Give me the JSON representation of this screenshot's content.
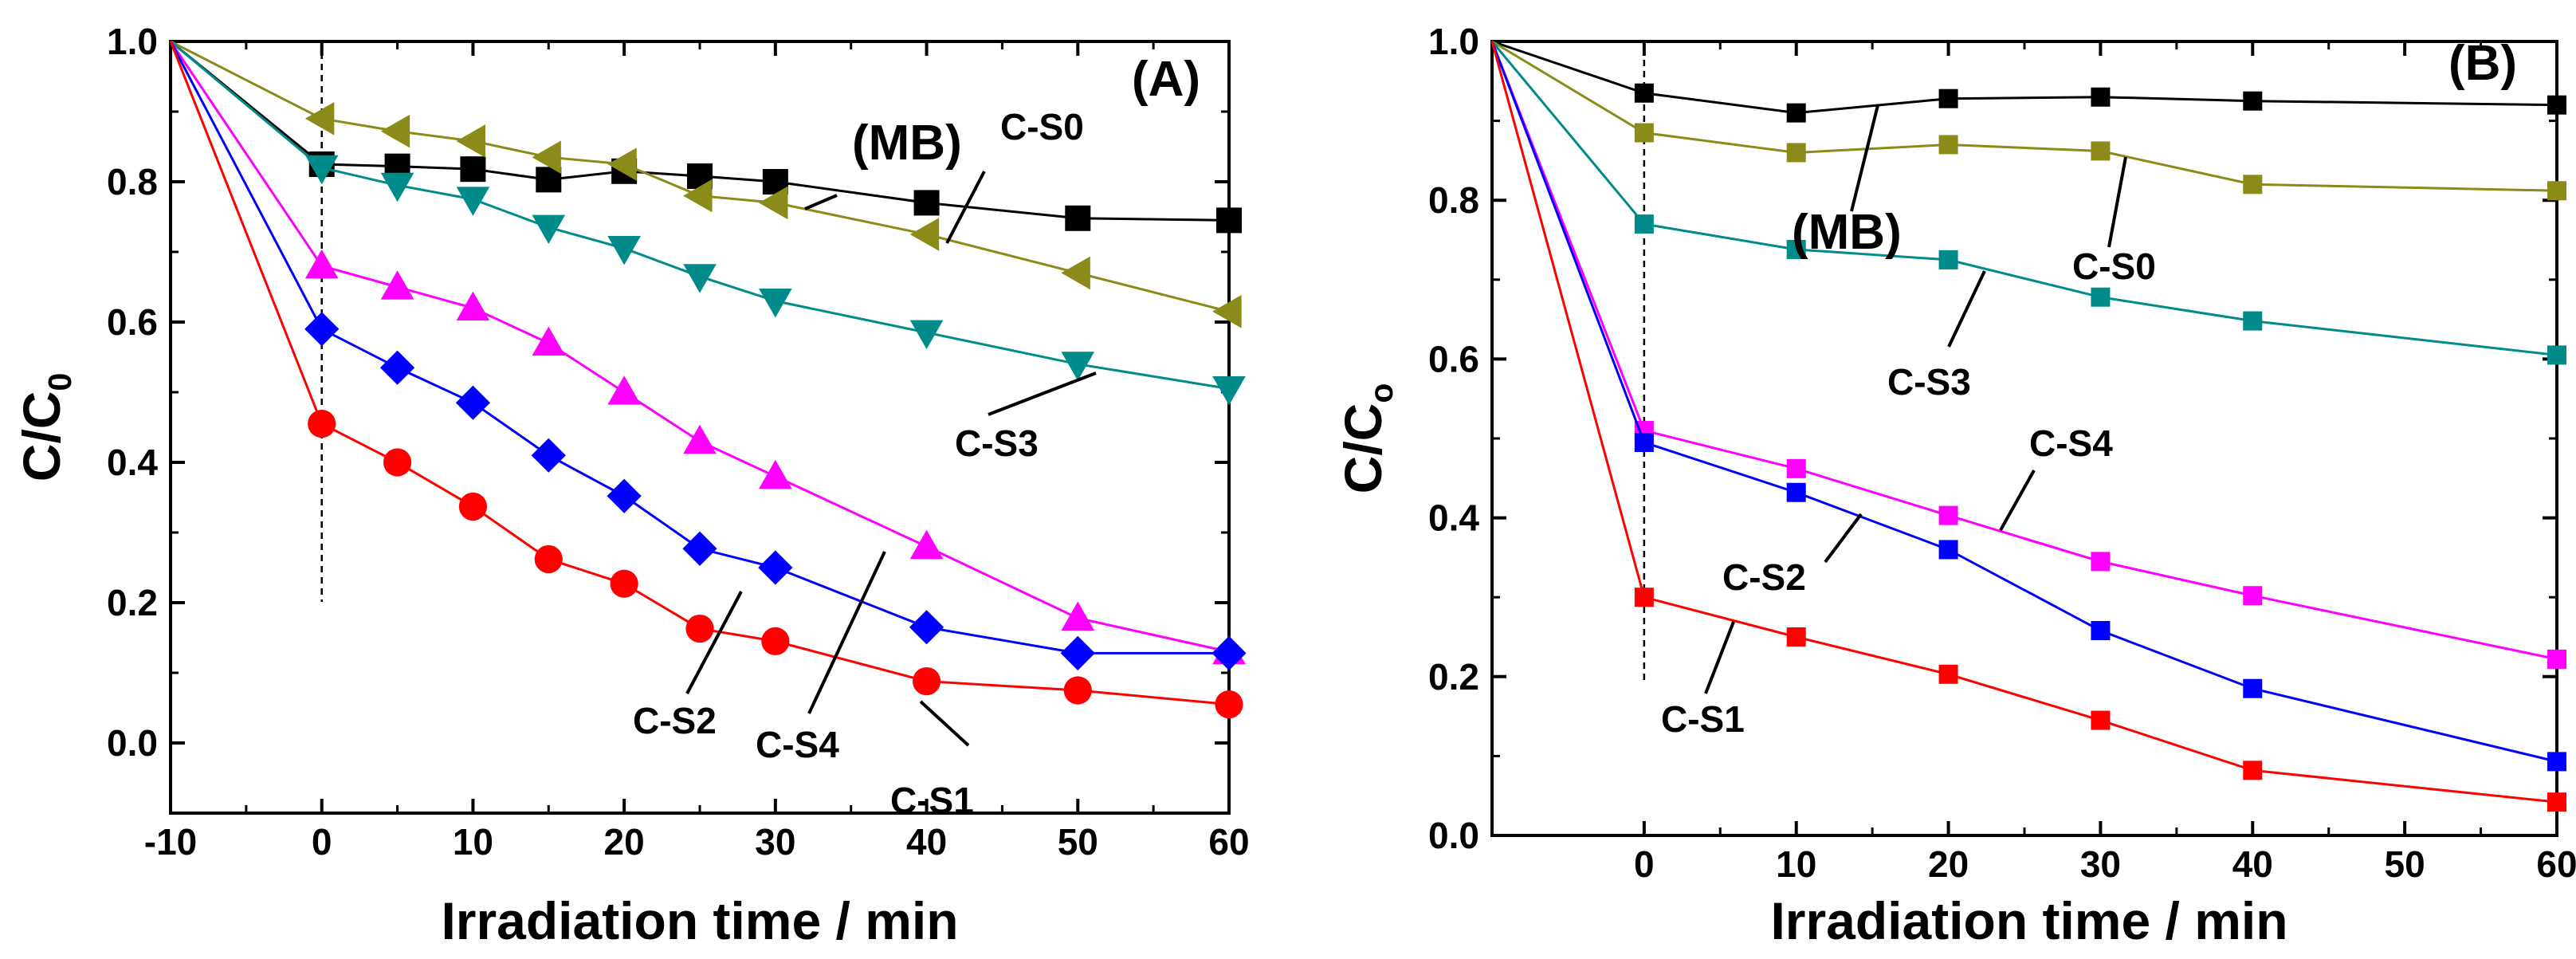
{
  "chart_data": [
    {
      "panel": "(A)",
      "type": "line",
      "xlabel": "Irradiation time / min",
      "ylabel": "C/C",
      "ylabel_sub": "0",
      "xlim": [
        -10,
        60
      ],
      "ylim": [
        -0.1,
        1.0
      ],
      "xticks": [
        -10,
        0,
        10,
        20,
        30,
        40,
        50,
        60
      ],
      "xtick_labels": [
        "-10",
        "0",
        "10",
        "20",
        "30",
        "40",
        "50",
        "60"
      ],
      "yticks": [
        0.0,
        0.2,
        0.4,
        0.6,
        0.8,
        1.0
      ],
      "ytick_labels": [
        "0.0",
        "0.2",
        "0.4",
        "0.6",
        "0.8",
        "1.0"
      ],
      "vline_x": 0,
      "series": [
        {
          "name": "(MB)",
          "color": "#000000",
          "marker": "square",
          "x": [
            -10,
            0,
            5,
            10,
            15,
            20,
            25,
            30,
            40,
            50,
            60
          ],
          "y": [
            1.0,
            0.825,
            0.822,
            0.818,
            0.803,
            0.815,
            0.808,
            0.8,
            0.77,
            0.748,
            0.745
          ]
        },
        {
          "name": "C-S0",
          "color": "#8B8B1A",
          "marker": "triangle-left",
          "x": [
            -10,
            0,
            5,
            10,
            15,
            20,
            25,
            30,
            40,
            50,
            60
          ],
          "y": [
            1.0,
            0.89,
            0.872,
            0.858,
            0.835,
            0.825,
            0.78,
            0.77,
            0.725,
            0.67,
            0.615
          ]
        },
        {
          "name": "C-S3",
          "color": "#008B8B",
          "marker": "triangle-down",
          "x": [
            -10,
            0,
            5,
            10,
            15,
            20,
            25,
            30,
            40,
            50,
            60
          ],
          "y": [
            1.0,
            0.82,
            0.795,
            0.775,
            0.735,
            0.705,
            0.665,
            0.63,
            0.585,
            0.54,
            0.505
          ]
        },
        {
          "name": "C-S4",
          "color": "#FF00FF",
          "marker": "triangle-up",
          "x": [
            -10,
            0,
            5,
            10,
            15,
            20,
            25,
            30,
            40,
            50,
            60
          ],
          "y": [
            1.0,
            0.68,
            0.65,
            0.62,
            0.57,
            0.5,
            0.43,
            0.38,
            0.28,
            0.178,
            0.13
          ]
        },
        {
          "name": "C-S2",
          "color": "#0000FF",
          "marker": "diamond",
          "x": [
            -10,
            0,
            5,
            10,
            15,
            20,
            25,
            30,
            40,
            50,
            60
          ],
          "y": [
            1.0,
            0.59,
            0.535,
            0.485,
            0.41,
            0.352,
            0.277,
            0.25,
            0.165,
            0.128,
            0.128
          ]
        },
        {
          "name": "C-S1",
          "color": "#FF0000",
          "marker": "circle",
          "x": [
            -10,
            0,
            5,
            10,
            15,
            20,
            25,
            30,
            40,
            50,
            60
          ],
          "y": [
            1.0,
            0.455,
            0.4,
            0.337,
            0.262,
            0.227,
            0.163,
            0.145,
            0.088,
            0.075,
            0.055
          ]
        }
      ],
      "annotations": [
        {
          "text": "(MB)",
          "near_series": "(MB)"
        },
        {
          "text": "C-S0",
          "near_series": "C-S0"
        },
        {
          "text": "C-S3",
          "near_series": "C-S3"
        },
        {
          "text": "C-S4",
          "near_series": "C-S4"
        },
        {
          "text": "C-S2",
          "near_series": "C-S2"
        },
        {
          "text": "C-S1",
          "near_series": "C-S1"
        }
      ]
    },
    {
      "panel": "(B)",
      "type": "line",
      "xlabel": "Irradiation time / min",
      "ylabel": "C/C",
      "ylabel_sub": "o",
      "xlim": [
        -10,
        60
      ],
      "ylim": [
        0.0,
        1.0
      ],
      "xticks": [
        0,
        10,
        20,
        30,
        40,
        50,
        60
      ],
      "xtick_labels": [
        "0",
        "10",
        "20",
        "30",
        "40",
        "50",
        "60"
      ],
      "yticks": [
        0.0,
        0.2,
        0.4,
        0.6,
        0.8,
        1.0
      ],
      "ytick_labels": [
        "0.0",
        "0.2",
        "0.4",
        "0.6",
        "0.8",
        "1.0"
      ],
      "vline_x": 0,
      "series": [
        {
          "name": "(MB)",
          "color": "#000000",
          "marker": "square",
          "x": [
            -10,
            0,
            10,
            20,
            30,
            40,
            60
          ],
          "y": [
            1.0,
            0.935,
            0.91,
            0.928,
            0.93,
            0.925,
            0.92
          ]
        },
        {
          "name": "C-S0",
          "color": "#8B8B1A",
          "marker": "square",
          "x": [
            -10,
            0,
            10,
            20,
            30,
            40,
            60
          ],
          "y": [
            1.0,
            0.885,
            0.86,
            0.87,
            0.862,
            0.82,
            0.812
          ]
        },
        {
          "name": "C-S3",
          "color": "#008B8B",
          "marker": "square",
          "x": [
            -10,
            0,
            10,
            20,
            30,
            40,
            60
          ],
          "y": [
            1.0,
            0.77,
            0.738,
            0.725,
            0.678,
            0.648,
            0.605
          ]
        },
        {
          "name": "C-S4",
          "color": "#FF00FF",
          "marker": "square",
          "x": [
            -10,
            0,
            10,
            20,
            30,
            40,
            60
          ],
          "y": [
            1.0,
            0.51,
            0.462,
            0.403,
            0.345,
            0.302,
            0.222
          ]
        },
        {
          "name": "C-S2",
          "color": "#0000FF",
          "marker": "square",
          "x": [
            -10,
            0,
            10,
            20,
            30,
            40,
            60
          ],
          "y": [
            1.0,
            0.495,
            0.432,
            0.36,
            0.258,
            0.185,
            0.093
          ]
        },
        {
          "name": "C-S1",
          "color": "#FF0000",
          "marker": "square",
          "x": [
            -10,
            0,
            10,
            20,
            30,
            40,
            60
          ],
          "y": [
            1.0,
            0.3,
            0.25,
            0.203,
            0.145,
            0.082,
            0.042
          ]
        }
      ],
      "annotations": [
        {
          "text": "(MB)",
          "near_series": "(MB)"
        },
        {
          "text": "C-S0",
          "near_series": "C-S0"
        },
        {
          "text": "C-S3",
          "near_series": "C-S3"
        },
        {
          "text": "C-S4",
          "near_series": "C-S4"
        },
        {
          "text": "C-S2",
          "near_series": "C-S2"
        },
        {
          "text": "C-S1",
          "near_series": "C-S1"
        }
      ]
    }
  ]
}
